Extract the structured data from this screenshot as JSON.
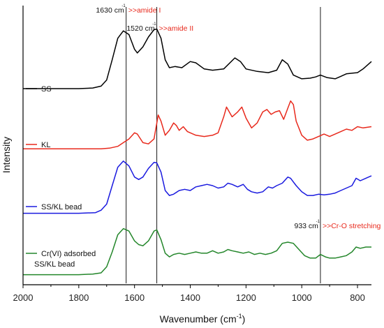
{
  "chart_data": {
    "type": "line",
    "title": "",
    "xlabel": "Wavenumber (cm",
    "xlabel_sup": "-1",
    "xlabel_close": ")",
    "ylabel": "Intensity",
    "xlim": [
      2000,
      750
    ],
    "x_reversed": true,
    "x_ticks": [
      2000,
      1800,
      1600,
      1400,
      1200,
      1000,
      800
    ],
    "y_ticks_shown": false,
    "grid": false,
    "legend_placement": "inline-left-of-each-trace",
    "series": [
      {
        "name": "SS",
        "color": "#000000",
        "offset": 3.0,
        "points": [
          [
            2000,
            0.08
          ],
          [
            1900,
            0.08
          ],
          [
            1800,
            0.08
          ],
          [
            1750,
            0.09
          ],
          [
            1720,
            0.12
          ],
          [
            1700,
            0.22
          ],
          [
            1680,
            0.55
          ],
          [
            1660,
            0.9
          ],
          [
            1640,
            1.02
          ],
          [
            1620,
            0.96
          ],
          [
            1600,
            0.72
          ],
          [
            1590,
            0.66
          ],
          [
            1570,
            0.76
          ],
          [
            1550,
            0.92
          ],
          [
            1530,
            1.04
          ],
          [
            1520,
            1.05
          ],
          [
            1505,
            0.9
          ],
          [
            1490,
            0.55
          ],
          [
            1475,
            0.42
          ],
          [
            1455,
            0.44
          ],
          [
            1430,
            0.42
          ],
          [
            1400,
            0.52
          ],
          [
            1380,
            0.5
          ],
          [
            1350,
            0.4
          ],
          [
            1320,
            0.38
          ],
          [
            1280,
            0.4
          ],
          [
            1240,
            0.58
          ],
          [
            1220,
            0.52
          ],
          [
            1200,
            0.4
          ],
          [
            1160,
            0.36
          ],
          [
            1120,
            0.34
          ],
          [
            1090,
            0.38
          ],
          [
            1070,
            0.55
          ],
          [
            1050,
            0.48
          ],
          [
            1030,
            0.3
          ],
          [
            1000,
            0.24
          ],
          [
            970,
            0.25
          ],
          [
            950,
            0.27
          ],
          [
            933,
            0.3
          ],
          [
            910,
            0.26
          ],
          [
            880,
            0.24
          ],
          [
            860,
            0.28
          ],
          [
            840,
            0.32
          ],
          [
            800,
            0.34
          ],
          [
            780,
            0.4
          ],
          [
            750,
            0.52
          ]
        ]
      },
      {
        "name": "KL",
        "color": "#e8291c",
        "offset": 2.0,
        "points": [
          [
            2000,
            0.1
          ],
          [
            1900,
            0.1
          ],
          [
            1800,
            0.1
          ],
          [
            1720,
            0.1
          ],
          [
            1690,
            0.11
          ],
          [
            1660,
            0.14
          ],
          [
            1640,
            0.2
          ],
          [
            1620,
            0.26
          ],
          [
            1600,
            0.36
          ],
          [
            1590,
            0.34
          ],
          [
            1570,
            0.2
          ],
          [
            1550,
            0.18
          ],
          [
            1530,
            0.26
          ],
          [
            1515,
            0.65
          ],
          [
            1505,
            0.55
          ],
          [
            1490,
            0.32
          ],
          [
            1475,
            0.4
          ],
          [
            1460,
            0.52
          ],
          [
            1450,
            0.48
          ],
          [
            1440,
            0.4
          ],
          [
            1425,
            0.46
          ],
          [
            1410,
            0.38
          ],
          [
            1380,
            0.32
          ],
          [
            1350,
            0.3
          ],
          [
            1320,
            0.32
          ],
          [
            1300,
            0.36
          ],
          [
            1280,
            0.62
          ],
          [
            1270,
            0.78
          ],
          [
            1250,
            0.62
          ],
          [
            1230,
            0.7
          ],
          [
            1215,
            0.78
          ],
          [
            1200,
            0.6
          ],
          [
            1180,
            0.44
          ],
          [
            1160,
            0.52
          ],
          [
            1140,
            0.7
          ],
          [
            1125,
            0.74
          ],
          [
            1110,
            0.66
          ],
          [
            1095,
            0.7
          ],
          [
            1080,
            0.72
          ],
          [
            1065,
            0.58
          ],
          [
            1050,
            0.76
          ],
          [
            1040,
            0.88
          ],
          [
            1030,
            0.82
          ],
          [
            1020,
            0.55
          ],
          [
            1000,
            0.32
          ],
          [
            980,
            0.24
          ],
          [
            960,
            0.26
          ],
          [
            940,
            0.3
          ],
          [
            920,
            0.34
          ],
          [
            900,
            0.3
          ],
          [
            880,
            0.34
          ],
          [
            860,
            0.38
          ],
          [
            840,
            0.42
          ],
          [
            820,
            0.4
          ],
          [
            800,
            0.46
          ],
          [
            780,
            0.44
          ],
          [
            750,
            0.46
          ]
        ]
      },
      {
        "name": "SS/KL bead",
        "color": "#1a1adf",
        "offset": 1.0,
        "points": [
          [
            2000,
            0.05
          ],
          [
            1900,
            0.05
          ],
          [
            1800,
            0.05
          ],
          [
            1740,
            0.06
          ],
          [
            1720,
            0.1
          ],
          [
            1700,
            0.2
          ],
          [
            1680,
            0.5
          ],
          [
            1660,
            0.8
          ],
          [
            1640,
            0.9
          ],
          [
            1620,
            0.82
          ],
          [
            1600,
            0.64
          ],
          [
            1585,
            0.6
          ],
          [
            1570,
            0.64
          ],
          [
            1550,
            0.78
          ],
          [
            1530,
            0.88
          ],
          [
            1520,
            0.87
          ],
          [
            1505,
            0.72
          ],
          [
            1490,
            0.42
          ],
          [
            1475,
            0.34
          ],
          [
            1460,
            0.36
          ],
          [
            1440,
            0.42
          ],
          [
            1420,
            0.44
          ],
          [
            1400,
            0.42
          ],
          [
            1380,
            0.48
          ],
          [
            1360,
            0.5
          ],
          [
            1340,
            0.52
          ],
          [
            1320,
            0.5
          ],
          [
            1300,
            0.46
          ],
          [
            1280,
            0.48
          ],
          [
            1265,
            0.54
          ],
          [
            1250,
            0.52
          ],
          [
            1230,
            0.48
          ],
          [
            1210,
            0.52
          ],
          [
            1195,
            0.44
          ],
          [
            1180,
            0.4
          ],
          [
            1160,
            0.38
          ],
          [
            1140,
            0.4
          ],
          [
            1120,
            0.48
          ],
          [
            1105,
            0.46
          ],
          [
            1090,
            0.5
          ],
          [
            1070,
            0.54
          ],
          [
            1050,
            0.64
          ],
          [
            1040,
            0.62
          ],
          [
            1020,
            0.5
          ],
          [
            1000,
            0.4
          ],
          [
            980,
            0.34
          ],
          [
            960,
            0.34
          ],
          [
            940,
            0.36
          ],
          [
            920,
            0.35
          ],
          [
            900,
            0.36
          ],
          [
            880,
            0.38
          ],
          [
            860,
            0.42
          ],
          [
            840,
            0.46
          ],
          [
            820,
            0.5
          ],
          [
            805,
            0.62
          ],
          [
            790,
            0.58
          ],
          [
            770,
            0.62
          ],
          [
            750,
            0.66
          ]
        ]
      },
      {
        "name": "Cr(VI) adsorbed\nSS/KL bead",
        "color": "#23862a",
        "offset": 0.0,
        "points": [
          [
            2000,
            0.05
          ],
          [
            1900,
            0.05
          ],
          [
            1800,
            0.05
          ],
          [
            1750,
            0.06
          ],
          [
            1720,
            0.08
          ],
          [
            1700,
            0.18
          ],
          [
            1680,
            0.42
          ],
          [
            1660,
            0.7
          ],
          [
            1640,
            0.8
          ],
          [
            1620,
            0.76
          ],
          [
            1600,
            0.6
          ],
          [
            1585,
            0.54
          ],
          [
            1570,
            0.52
          ],
          [
            1550,
            0.6
          ],
          [
            1530,
            0.76
          ],
          [
            1520,
            0.78
          ],
          [
            1505,
            0.62
          ],
          [
            1490,
            0.4
          ],
          [
            1475,
            0.34
          ],
          [
            1460,
            0.38
          ],
          [
            1440,
            0.4
          ],
          [
            1420,
            0.38
          ],
          [
            1400,
            0.4
          ],
          [
            1380,
            0.42
          ],
          [
            1360,
            0.4
          ],
          [
            1340,
            0.4
          ],
          [
            1320,
            0.44
          ],
          [
            1300,
            0.4
          ],
          [
            1280,
            0.42
          ],
          [
            1265,
            0.46
          ],
          [
            1250,
            0.44
          ],
          [
            1230,
            0.42
          ],
          [
            1210,
            0.4
          ],
          [
            1190,
            0.42
          ],
          [
            1170,
            0.38
          ],
          [
            1150,
            0.4
          ],
          [
            1130,
            0.38
          ],
          [
            1110,
            0.4
          ],
          [
            1090,
            0.44
          ],
          [
            1070,
            0.56
          ],
          [
            1050,
            0.58
          ],
          [
            1030,
            0.56
          ],
          [
            1010,
            0.46
          ],
          [
            990,
            0.36
          ],
          [
            970,
            0.32
          ],
          [
            950,
            0.32
          ],
          [
            933,
            0.38
          ],
          [
            915,
            0.34
          ],
          [
            900,
            0.32
          ],
          [
            880,
            0.32
          ],
          [
            860,
            0.34
          ],
          [
            840,
            0.36
          ],
          [
            820,
            0.42
          ],
          [
            805,
            0.5
          ],
          [
            790,
            0.48
          ],
          [
            770,
            0.5
          ],
          [
            750,
            0.5
          ]
        ]
      }
    ],
    "vertical_markers": [
      {
        "x": 1630,
        "value_text": "1630 cm",
        "sup": "-1",
        "label": ">>amide I"
      },
      {
        "x": 1520,
        "value_text": "1520 cm",
        "sup": "-1",
        "label": ">>amide II"
      },
      {
        "x": 933,
        "value_text": "933 cm",
        "sup": "-1",
        "label": ">>Cr-O stretching"
      }
    ]
  }
}
